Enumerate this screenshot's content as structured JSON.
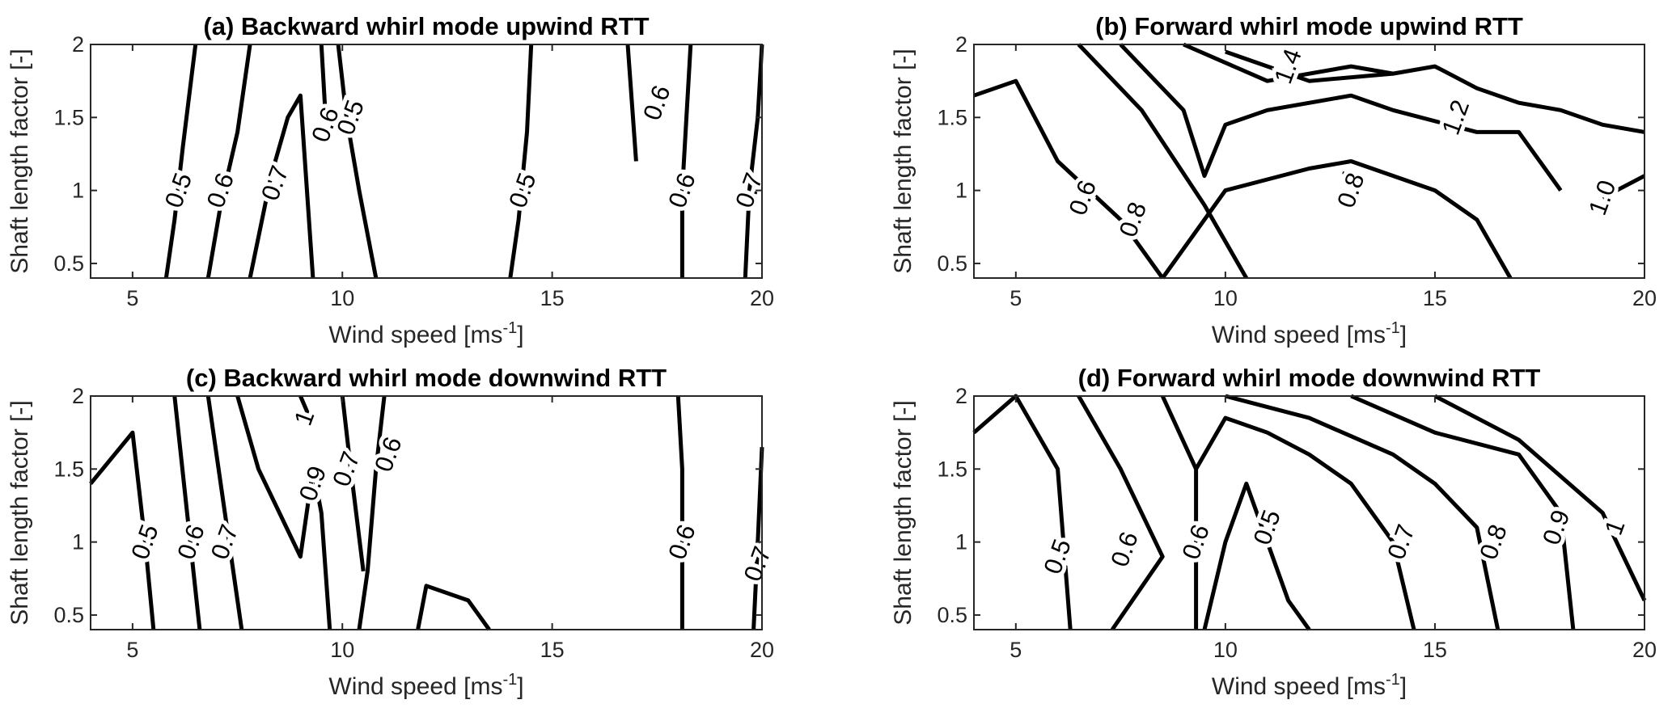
{
  "chart_data": [
    {
      "type": "contour",
      "panel": "a",
      "title": "(a) Backward whirl mode upwind RTT",
      "xlabel": "Wind speed [ms-1]",
      "ylabel": "Shaft length factor [-]",
      "xlim": [
        4,
        20
      ],
      "ylim": [
        0.4,
        2
      ],
      "xticks": [
        5,
        10,
        15,
        20
      ],
      "yticks": [
        0.5,
        1,
        1.5,
        2
      ],
      "grid": false,
      "contours": [
        {
          "level": "0.5",
          "points": [
            [
              5.8,
              0.4
            ],
            [
              6.0,
              0.8
            ],
            [
              6.2,
              1.3
            ],
            [
              6.5,
              2.0
            ]
          ],
          "label": [
            6.1,
            1.0
          ]
        },
        {
          "level": "0.6",
          "points": [
            [
              6.8,
              0.4
            ],
            [
              7.1,
              0.9
            ],
            [
              7.5,
              1.4
            ],
            [
              7.8,
              2.0
            ]
          ],
          "label": [
            7.1,
            1.0
          ]
        },
        {
          "level": "0.7",
          "points": [
            [
              7.8,
              0.4
            ],
            [
              8.3,
              1.1
            ],
            [
              8.7,
              1.5
            ],
            [
              9.0,
              1.65
            ],
            [
              9.3,
              0.4
            ]
          ],
          "label": [
            8.4,
            1.05
          ]
        },
        {
          "level": "0.6",
          "points": [
            [
              9.5,
              2.0
            ],
            [
              9.6,
              1.5
            ]
          ],
          "label": [
            9.6,
            1.45
          ]
        },
        {
          "level": "0.5",
          "points": [
            [
              9.9,
              2.0
            ],
            [
              10.1,
              1.5
            ],
            [
              10.4,
              1.0
            ],
            [
              10.8,
              0.4
            ]
          ],
          "label": [
            10.2,
            1.5
          ]
        },
        {
          "level": "0.5",
          "points": [
            [
              14.0,
              0.4
            ],
            [
              14.2,
              0.8
            ],
            [
              14.4,
              1.4
            ],
            [
              14.5,
              2.0
            ]
          ],
          "label": [
            14.3,
            1.0
          ]
        },
        {
          "level": "0.6",
          "points": [
            [
              16.8,
              2.0
            ],
            [
              16.9,
              1.6
            ],
            [
              17.0,
              1.2
            ]
          ],
          "label": [
            17.5,
            1.6
          ]
        },
        {
          "level": "0.6",
          "points": [
            [
              18.3,
              2.0
            ],
            [
              18.2,
              1.5
            ],
            [
              18.1,
              1.0
            ],
            [
              18.1,
              0.4
            ]
          ],
          "label": [
            18.1,
            1.0
          ]
        },
        {
          "level": "0.7",
          "points": [
            [
              19.6,
              0.4
            ],
            [
              19.7,
              1.0
            ],
            [
              19.9,
              1.5
            ],
            [
              20.0,
              2.0
            ]
          ],
          "label": [
            19.7,
            1.0
          ]
        }
      ]
    },
    {
      "type": "contour",
      "panel": "b",
      "title": "(b) Forward whirl mode upwind RTT",
      "xlabel": "Wind speed [ms-1]",
      "ylabel": "Shaft length factor [-]",
      "xlim": [
        4,
        20
      ],
      "ylim": [
        0.4,
        2
      ],
      "xticks": [
        5,
        10,
        15,
        20
      ],
      "yticks": [
        0.5,
        1,
        1.5,
        2
      ],
      "grid": false,
      "contours": [
        {
          "level": "0.6",
          "points": [
            [
              4,
              1.65
            ],
            [
              5,
              1.75
            ],
            [
              6,
              1.2
            ],
            [
              7.5,
              0.8
            ],
            [
              8.5,
              0.4
            ]
          ],
          "label": [
            6.6,
            0.95
          ]
        },
        {
          "level": "0.8",
          "points": [
            [
              6.5,
              2.0
            ],
            [
              8,
              1.55
            ],
            [
              9.5,
              0.9
            ],
            [
              10.5,
              0.4
            ]
          ],
          "label": [
            7.8,
            0.8
          ]
        },
        {
          "level": "1",
          "points": [
            [
              7.5,
              2.0
            ],
            [
              9,
              1.55
            ],
            [
              9.5,
              1.1
            ],
            [
              10,
              1.45
            ],
            [
              11,
              1.55
            ],
            [
              13,
              1.65
            ],
            [
              14,
              1.55
            ],
            [
              16,
              1.4
            ],
            [
              17,
              1.4
            ],
            [
              18,
              1.0
            ]
          ],
          "label": [
            13,
            1.1
          ]
        },
        {
          "level": "0.8",
          "points": [
            [
              8.5,
              0.4
            ],
            [
              10,
              1.0
            ],
            [
              12,
              1.15
            ],
            [
              13,
              1.2
            ],
            [
              15,
              1.0
            ],
            [
              16,
              0.8
            ],
            [
              16.8,
              0.4
            ]
          ],
          "label": [
            13,
            1.0
          ]
        },
        {
          "level": "1.2",
          "points": [
            [
              9,
              2.0
            ],
            [
              11,
              1.75
            ],
            [
              13,
              1.85
            ],
            [
              14,
              1.8
            ],
            [
              15,
              1.85
            ],
            [
              16,
              1.7
            ],
            [
              17,
              1.6
            ],
            [
              18,
              1.55
            ],
            [
              19,
              1.45
            ],
            [
              20,
              1.4
            ]
          ],
          "label": [
            15.5,
            1.5
          ]
        },
        {
          "level": "1.4",
          "points": [
            [
              10,
              1.95
            ],
            [
              12,
              1.75
            ],
            [
              14,
              1.8
            ]
          ],
          "label": [
            11.5,
            1.85
          ]
        },
        {
          "level": "1.0",
          "points": [
            [
              19,
              0.95
            ],
            [
              20,
              1.1
            ]
          ],
          "label": [
            19,
            0.95
          ]
        }
      ]
    },
    {
      "type": "contour",
      "panel": "c",
      "title": "(c) Backward whirl mode downwind RTT",
      "xlabel": "Wind speed [ms-1]",
      "ylabel": "Shaft length factor [-]",
      "xlim": [
        4,
        20
      ],
      "ylim": [
        0.4,
        2
      ],
      "xticks": [
        5,
        10,
        15,
        20
      ],
      "yticks": [
        0.5,
        1,
        1.5,
        2
      ],
      "grid": false,
      "contours": [
        {
          "level": "0.5",
          "points": [
            [
              4,
              1.4
            ],
            [
              5,
              1.75
            ],
            [
              5.3,
              1.0
            ],
            [
              5.5,
              0.4
            ]
          ],
          "label": [
            5.3,
            1.0
          ]
        },
        {
          "level": "0.6",
          "points": [
            [
              6,
              2.0
            ],
            [
              6.3,
              1.2
            ],
            [
              6.6,
              0.4
            ]
          ],
          "label": [
            6.4,
            1.0
          ]
        },
        {
          "level": "0.7",
          "points": [
            [
              6.8,
              2.0
            ],
            [
              7.2,
              1.2
            ],
            [
              7.6,
              0.4
            ]
          ],
          "label": [
            7.2,
            1.0
          ]
        },
        {
          "level": "0.9",
          "points": [
            [
              7.5,
              2.0
            ],
            [
              8,
              1.5
            ],
            [
              9,
              0.9
            ],
            [
              9.3,
              1.5
            ],
            [
              9.5,
              1.2
            ],
            [
              9.7,
              0.4
            ]
          ],
          "label": [
            9.3,
            1.4
          ]
        },
        {
          "level": "0.7",
          "points": [
            [
              10,
              2.0
            ],
            [
              10.2,
              1.5
            ],
            [
              10.5,
              0.8
            ]
          ],
          "label": [
            10.1,
            1.5
          ]
        },
        {
          "level": "0.6",
          "points": [
            [
              11,
              2.0
            ],
            [
              10.8,
              1.5
            ],
            [
              10.6,
              0.8
            ],
            [
              10.4,
              0.4
            ]
          ],
          "label": [
            11.1,
            1.6
          ]
        },
        {
          "level": "1",
          "points": [
            [
              9,
              2.0
            ],
            [
              9.3,
              1.8
            ]
          ],
          "label": [
            9.1,
            1.85
          ]
        },
        {
          "level": "",
          "points": [
            [
              11.8,
              0.4
            ],
            [
              12,
              0.7
            ],
            [
              13,
              0.6
            ],
            [
              13.5,
              0.4
            ]
          ],
          "label": null
        },
        {
          "level": "0.6",
          "points": [
            [
              18,
              2.0
            ],
            [
              18.1,
              1.5
            ],
            [
              18.1,
              1.0
            ],
            [
              18.1,
              0.4
            ]
          ],
          "label": [
            18.1,
            1.0
          ]
        },
        {
          "level": "0.7",
          "points": [
            [
              19.8,
              0.4
            ],
            [
              19.9,
              1.0
            ],
            [
              20,
              1.65
            ]
          ],
          "label": [
            19.9,
            0.85
          ]
        }
      ]
    },
    {
      "type": "contour",
      "panel": "d",
      "title": "(d) Forward whirl mode downwind RTT",
      "xlabel": "Wind speed [ms-1]",
      "ylabel": "Shaft length factor [-]",
      "xlim": [
        4,
        20
      ],
      "ylim": [
        0.4,
        2
      ],
      "xticks": [
        5,
        10,
        15,
        20
      ],
      "yticks": [
        0.5,
        1,
        1.5,
        2
      ],
      "grid": false,
      "contours": [
        {
          "level": "0.5",
          "points": [
            [
              4,
              1.75
            ],
            [
              5,
              2.0
            ],
            [
              6,
              1.5
            ],
            [
              6.3,
              0.4
            ]
          ],
          "label": [
            6.0,
            0.9
          ]
        },
        {
          "level": "0.6",
          "points": [
            [
              6.5,
              2.0
            ],
            [
              7.5,
              1.5
            ],
            [
              8.5,
              0.9
            ],
            [
              7.3,
              0.4
            ]
          ],
          "label": [
            7.6,
            0.95
          ]
        },
        {
          "level": "0.6",
          "points": [
            [
              8.5,
              2.0
            ],
            [
              9.3,
              1.5
            ],
            [
              9.3,
              0.4
            ]
          ],
          "label": [
            9.3,
            1.0
          ]
        },
        {
          "level": "0.5",
          "points": [
            [
              9.5,
              0.4
            ],
            [
              10,
              1.0
            ],
            [
              10.5,
              1.4
            ],
            [
              11,
              1.0
            ],
            [
              11.5,
              0.6
            ],
            [
              12,
              0.4
            ]
          ],
          "label": [
            11,
            1.1
          ]
        },
        {
          "level": "0.7",
          "points": [
            [
              9.3,
              1.5
            ],
            [
              10,
              1.85
            ],
            [
              11,
              1.75
            ],
            [
              12,
              1.6
            ],
            [
              13,
              1.4
            ],
            [
              14,
              1.0
            ],
            [
              14.5,
              0.4
            ]
          ],
          "label": [
            14.2,
            1.0
          ]
        },
        {
          "level": "0.8",
          "points": [
            [
              10,
              2.0
            ],
            [
              12,
              1.85
            ],
            [
              14,
              1.6
            ],
            [
              15,
              1.4
            ],
            [
              16,
              1.1
            ],
            [
              16.5,
              0.4
            ]
          ],
          "label": [
            16.4,
            1.0
          ]
        },
        {
          "level": "0.9",
          "points": [
            [
              13,
              2.0
            ],
            [
              15,
              1.75
            ],
            [
              17,
              1.6
            ],
            [
              18,
              1.2
            ],
            [
              18.3,
              0.4
            ]
          ],
          "label": [
            17.9,
            1.1
          ]
        },
        {
          "level": "1",
          "points": [
            [
              15,
              2.0
            ],
            [
              17,
              1.7
            ],
            [
              19,
              1.2
            ],
            [
              20,
              0.6
            ]
          ],
          "label": [
            19.3,
            1.1
          ]
        }
      ]
    }
  ]
}
